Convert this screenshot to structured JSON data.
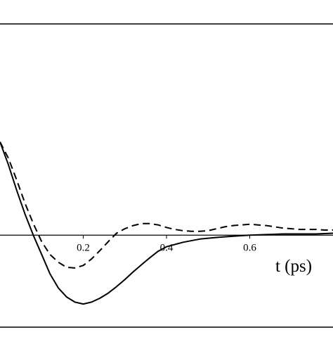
{
  "chart_data": {
    "type": "line",
    "title": "",
    "xlabel": "t (ps)",
    "ylabel": "",
    "xlim": [
      0.0,
      0.8
    ],
    "ylim": [
      -1.2,
      3.0
    ],
    "x_ticks": [
      {
        "value": 0.2,
        "label": "0.2"
      },
      {
        "value": 0.4,
        "label": "0.4"
      },
      {
        "value": 0.6,
        "label": "0.6"
      }
    ],
    "grid": false,
    "legend": "none",
    "series": [
      {
        "style": "solid",
        "color": "#000000",
        "points": [
          [
            0.0,
            1.45
          ],
          [
            0.02,
            1.1
          ],
          [
            0.04,
            0.7
          ],
          [
            0.06,
            0.33
          ],
          [
            0.08,
            0.0
          ],
          [
            0.1,
            -0.3
          ],
          [
            0.12,
            -0.6
          ],
          [
            0.14,
            -0.82
          ],
          [
            0.16,
            -0.96
          ],
          [
            0.18,
            -1.04
          ],
          [
            0.2,
            -1.07
          ],
          [
            0.22,
            -1.04
          ],
          [
            0.24,
            -0.98
          ],
          [
            0.26,
            -0.9
          ],
          [
            0.28,
            -0.8
          ],
          [
            0.3,
            -0.69
          ],
          [
            0.32,
            -0.57
          ],
          [
            0.34,
            -0.46
          ],
          [
            0.36,
            -0.35
          ],
          [
            0.38,
            -0.25
          ],
          [
            0.4,
            -0.18
          ],
          [
            0.44,
            -0.11
          ],
          [
            0.48,
            -0.06
          ],
          [
            0.52,
            -0.035
          ],
          [
            0.56,
            -0.015
          ],
          [
            0.6,
            0.0
          ],
          [
            0.64,
            0.01
          ],
          [
            0.68,
            0.02
          ],
          [
            0.72,
            0.02
          ],
          [
            0.76,
            0.02
          ],
          [
            0.8,
            0.03
          ]
        ]
      },
      {
        "style": "dashed",
        "color": "#000000",
        "points": [
          [
            0.0,
            1.45
          ],
          [
            0.02,
            1.2
          ],
          [
            0.04,
            0.86
          ],
          [
            0.06,
            0.5
          ],
          [
            0.08,
            0.18
          ],
          [
            0.1,
            -0.1
          ],
          [
            0.12,
            -0.3
          ],
          [
            0.14,
            -0.42
          ],
          [
            0.16,
            -0.5
          ],
          [
            0.18,
            -0.51
          ],
          [
            0.2,
            -0.47
          ],
          [
            0.22,
            -0.37
          ],
          [
            0.24,
            -0.24
          ],
          [
            0.26,
            -0.1
          ],
          [
            0.28,
            0.03
          ],
          [
            0.3,
            0.1
          ],
          [
            0.32,
            0.15
          ],
          [
            0.34,
            0.18
          ],
          [
            0.36,
            0.18
          ],
          [
            0.38,
            0.16
          ],
          [
            0.4,
            0.12
          ],
          [
            0.42,
            0.09
          ],
          [
            0.44,
            0.07
          ],
          [
            0.46,
            0.06
          ],
          [
            0.48,
            0.06
          ],
          [
            0.5,
            0.07
          ],
          [
            0.52,
            0.1
          ],
          [
            0.54,
            0.13
          ],
          [
            0.56,
            0.15
          ],
          [
            0.58,
            0.16
          ],
          [
            0.6,
            0.17
          ],
          [
            0.62,
            0.16
          ],
          [
            0.64,
            0.15
          ],
          [
            0.66,
            0.13
          ],
          [
            0.68,
            0.11
          ],
          [
            0.7,
            0.1
          ],
          [
            0.72,
            0.09
          ],
          [
            0.74,
            0.09
          ],
          [
            0.76,
            0.09
          ],
          [
            0.78,
            0.08
          ],
          [
            0.8,
            0.08
          ]
        ]
      }
    ]
  }
}
